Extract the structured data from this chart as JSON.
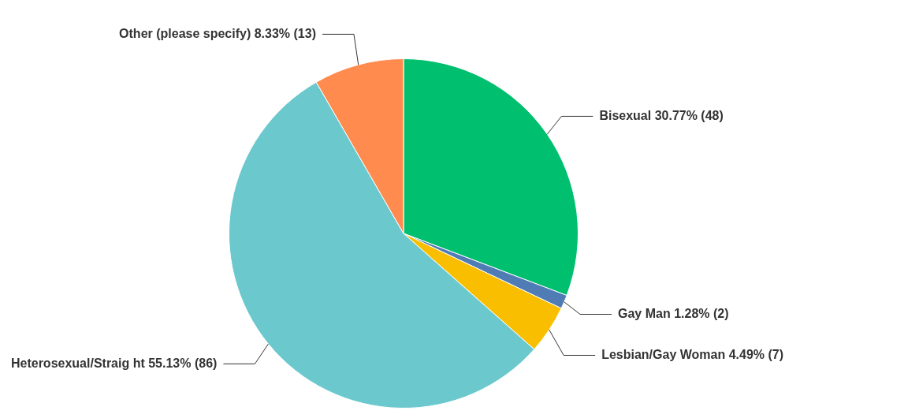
{
  "chart_data": {
    "type": "pie",
    "categories": [
      "Bisexual",
      "Gay Man",
      "Lesbian/Gay Woman",
      "Heterosexual/Straig ht",
      "Other (please specify)"
    ],
    "values": [
      48,
      2,
      7,
      86,
      13
    ],
    "value_labels": [
      "30.77% (48)",
      "1.28% (2)",
      "4.49% (7)",
      "55.13% (86)",
      "8.33% (13)"
    ],
    "colors": [
      "#00bf6f",
      "#507cb6",
      "#f9be00",
      "#6bc8cd",
      "#ff8b4f"
    ],
    "legend": false
  }
}
